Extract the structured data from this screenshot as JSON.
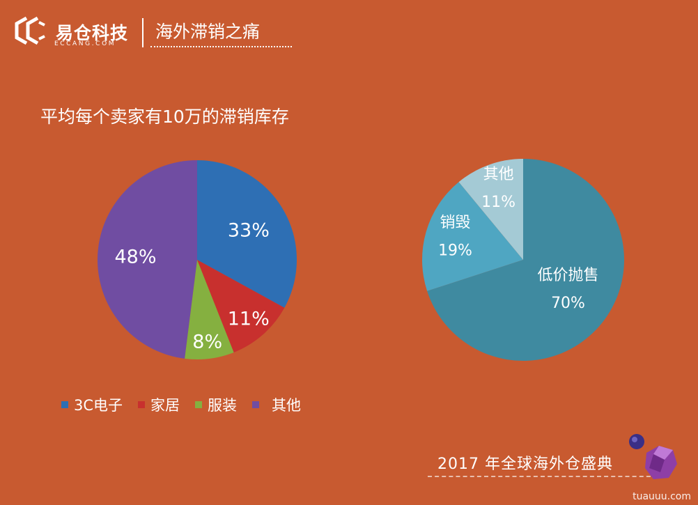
{
  "header": {
    "brand_name": "易仓科技",
    "brand_sub": "ECCANG.COM",
    "title": "海外滞销之痛"
  },
  "subtitle": "平均每个卖家有10万的滞销库存",
  "chart_data": [
    {
      "type": "pie",
      "categories": [
        "3C电子",
        "家居",
        "服装",
        "其他"
      ],
      "values": [
        33,
        11,
        8,
        48
      ],
      "labels": [
        "33%",
        "11%",
        "8%",
        "48%"
      ],
      "colors": [
        "#2e6fb4",
        "#c8302e",
        "#85b040",
        "#704da2"
      ],
      "legend_position": "bottom"
    },
    {
      "type": "pie",
      "categories": [
        "低价抛售",
        "销毁",
        "其他"
      ],
      "values": [
        70,
        19,
        11
      ],
      "labels": [
        "70%",
        "19%",
        "11%"
      ],
      "colors": [
        "#3f8aa0",
        "#4fa6c2",
        "#a4cad5"
      ]
    }
  ],
  "footer": {
    "text": "2017 年全球海外仓盛典",
    "watermark": "tuauuu.com"
  },
  "icons": [
    "eccang-logo-icon",
    "gem-icon"
  ]
}
